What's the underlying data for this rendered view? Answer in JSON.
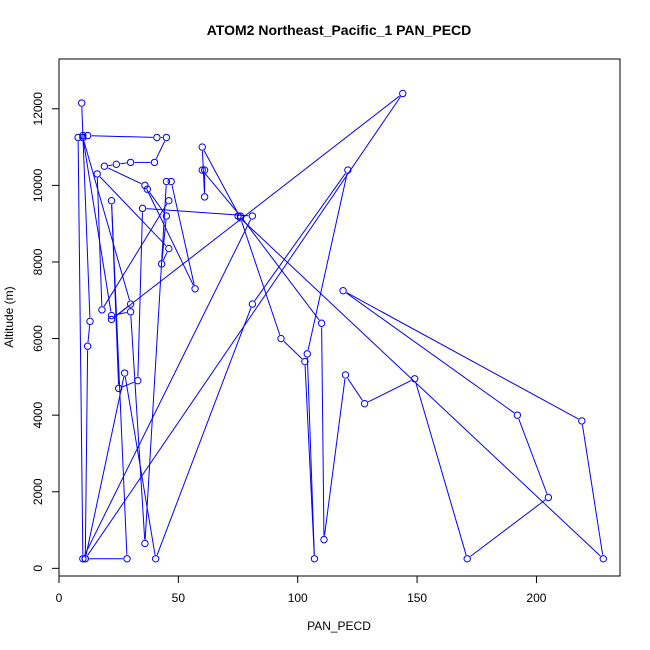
{
  "chart_data": {
    "type": "line",
    "title": "ATOM2 Northeast_Pacific_1 PAN_PECD",
    "xlabel": "PAN_PECD",
    "ylabel": "Altitude (m)",
    "xlim": [
      0,
      235
    ],
    "ylim": [
      -200,
      13300
    ],
    "x_ticks": [
      0,
      50,
      100,
      150,
      200
    ],
    "x_tick_labels": [
      "0",
      "50",
      "100",
      "150",
      "200"
    ],
    "y_ticks": [
      0,
      2000,
      4000,
      6000,
      8000,
      10000,
      12000
    ],
    "y_tick_labels": [
      "0",
      "2000",
      "4000",
      "6000",
      "8000",
      "10000",
      "12000"
    ],
    "grid": false,
    "color": "#0000ff",
    "series": [
      {
        "marker": "open-circle",
        "points": [
          [
            9.5,
            12150
          ],
          [
            13,
            6450
          ],
          [
            12,
            5800
          ],
          [
            11,
            250
          ],
          [
            28.5,
            250
          ],
          [
            22,
            9600
          ],
          [
            25,
            4700
          ],
          [
            33,
            4900
          ],
          [
            35,
            9400
          ],
          [
            81,
            9200
          ],
          [
            10,
            250
          ],
          [
            8,
            11250
          ],
          [
            10,
            11300
          ],
          [
            12,
            11300
          ],
          [
            41,
            11250
          ],
          [
            45,
            11250
          ],
          [
            40,
            10600
          ],
          [
            30,
            10600
          ],
          [
            24,
            10550
          ],
          [
            19,
            10500
          ],
          [
            36,
            10000
          ],
          [
            57,
            7300
          ],
          [
            47,
            10100
          ],
          [
            45,
            10100
          ],
          [
            36,
            650
          ],
          [
            30,
            6700
          ],
          [
            22,
            6600
          ],
          [
            10,
            11250
          ],
          [
            30,
            6900
          ],
          [
            22,
            6500
          ],
          [
            144,
            12400
          ],
          [
            11,
            250
          ],
          [
            27.5,
            5100
          ],
          [
            40.5,
            250
          ],
          [
            81,
            6900
          ],
          [
            121,
            10400
          ],
          [
            104,
            5600
          ],
          [
            107,
            250
          ],
          [
            103,
            5400
          ],
          [
            93,
            6000
          ],
          [
            76,
            9150
          ],
          [
            60,
            11000
          ],
          [
            61,
            9700
          ],
          [
            61,
            10400
          ],
          [
            60,
            10400
          ],
          [
            76,
            9200
          ],
          [
            110,
            6400
          ],
          [
            111,
            750
          ],
          [
            120,
            5050
          ],
          [
            128,
            4300
          ],
          [
            149,
            4950
          ],
          [
            171,
            250
          ],
          [
            205,
            1850
          ],
          [
            192,
            4000
          ],
          [
            119,
            7250
          ],
          [
            219,
            3850
          ],
          [
            228,
            250
          ],
          [
            75,
            9200
          ]
        ]
      },
      {
        "marker": "open-circle",
        "points": [
          [
            46,
            9600
          ],
          [
            18,
            6750
          ],
          [
            16,
            10300
          ],
          [
            46,
            8350
          ],
          [
            43,
            7950
          ],
          [
            45,
            9200
          ],
          [
            37,
            9900
          ]
        ]
      }
    ]
  }
}
